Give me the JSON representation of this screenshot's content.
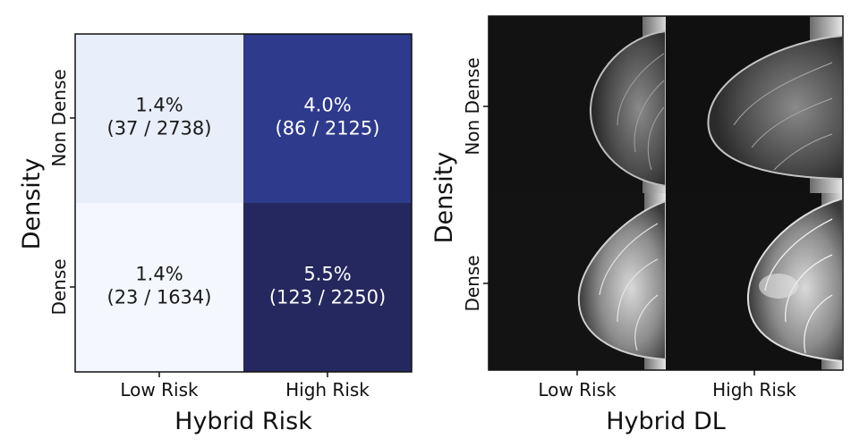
{
  "chart_data": [
    {
      "type": "heatmap",
      "xlabel": "Hybrid Risk",
      "ylabel": "Density",
      "x_categories": [
        "Low Risk",
        "High Risk"
      ],
      "y_categories": [
        "Non Dense",
        "Dense"
      ],
      "cells": [
        {
          "row": 0,
          "col": 0,
          "value": 1.4,
          "percent_label": "1.4%",
          "count_label": "(37 / 2738)",
          "color": "#e8eefa"
        },
        {
          "row": 0,
          "col": 1,
          "value": 4.0,
          "percent_label": "4.0%",
          "count_label": "(86 / 2125)",
          "color": "#2e3a8c"
        },
        {
          "row": 1,
          "col": 0,
          "value": 1.4,
          "percent_label": "1.4%",
          "count_label": "(23 / 1634)",
          "color": "#f4f7fd"
        },
        {
          "row": 1,
          "col": 1,
          "value": 5.5,
          "percent_label": "5.5%",
          "count_label": "(123 / 2250)",
          "color": "#24285e"
        }
      ],
      "colorscale": "Blues"
    },
    {
      "type": "image_grid",
      "xlabel": "Hybrid DL",
      "ylabel": "Density",
      "x_categories": [
        "Low Risk",
        "High Risk"
      ],
      "y_categories": [
        "Non Dense",
        "Dense"
      ],
      "cells": [
        {
          "row": 0,
          "col": 0,
          "image": "mammogram-non-dense-low-risk"
        },
        {
          "row": 0,
          "col": 1,
          "image": "mammogram-non-dense-high-risk"
        },
        {
          "row": 1,
          "col": 0,
          "image": "mammogram-dense-low-risk"
        },
        {
          "row": 1,
          "col": 1,
          "image": "mammogram-dense-high-risk"
        }
      ]
    }
  ]
}
